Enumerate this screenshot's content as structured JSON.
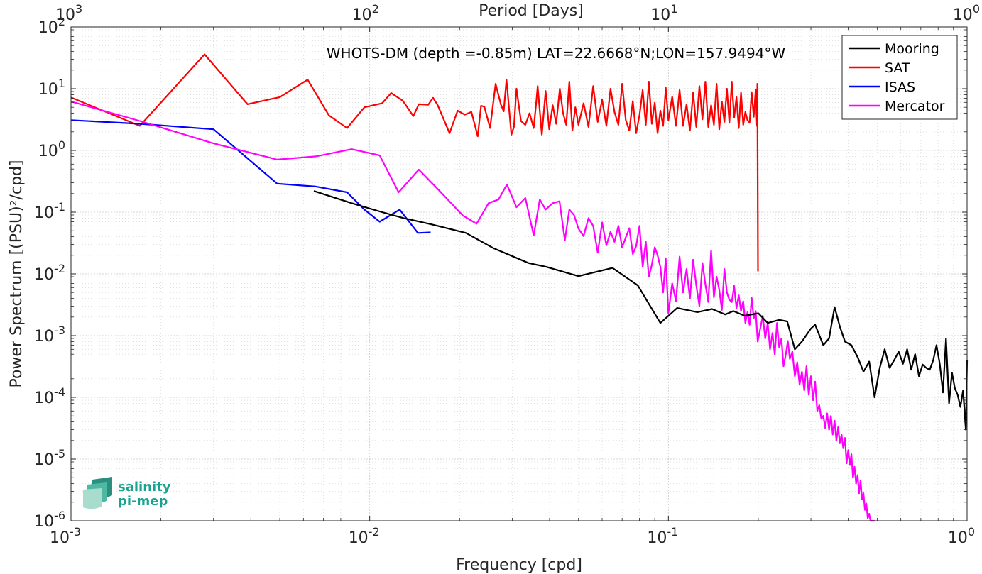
{
  "chart_data": {
    "type": "line",
    "title": "WHOTS-DM (depth =-0.85m) LAT=22.6668°N;LON=157.9494°W",
    "xlabel": "Frequency [cpd]",
    "ylabel": "Power Spectrum [(PSU)²/cpd]",
    "top_xlabel": "Period [Days]",
    "x_scale": "log",
    "y_scale": "log",
    "xlim": [
      0.001,
      1
    ],
    "ylim": [
      1e-06,
      100
    ],
    "x_ticks": [
      {
        "value": 0.001,
        "base": "10",
        "exp": "-3"
      },
      {
        "value": 0.01,
        "base": "10",
        "exp": "-2"
      },
      {
        "value": 0.1,
        "base": "10",
        "exp": "-1"
      },
      {
        "value": 1,
        "base": "10",
        "exp": "0"
      }
    ],
    "y_ticks": [
      {
        "value": 1e-06,
        "base": "10",
        "exp": "-6"
      },
      {
        "value": 1e-05,
        "base": "10",
        "exp": "-5"
      },
      {
        "value": 0.0001,
        "base": "10",
        "exp": "-4"
      },
      {
        "value": 0.001,
        "base": "10",
        "exp": "-3"
      },
      {
        "value": 0.01,
        "base": "10",
        "exp": "-2"
      },
      {
        "value": 0.1,
        "base": "10",
        "exp": "-1"
      },
      {
        "value": 1,
        "base": "10",
        "exp": "0"
      },
      {
        "value": 10,
        "base": "10",
        "exp": "1"
      },
      {
        "value": 100,
        "base": "10",
        "exp": "2"
      }
    ],
    "top_ticks": [
      {
        "value": 0.001,
        "base": "10",
        "exp": "3"
      },
      {
        "value": 0.01,
        "base": "10",
        "exp": "2"
      },
      {
        "value": 0.1,
        "base": "10",
        "exp": "1"
      },
      {
        "value": 1,
        "base": "10",
        "exp": "0"
      }
    ],
    "grid": true,
    "legend_position": "top-right",
    "series": [
      {
        "name": "Mooring",
        "color": "#000000",
        "x": [
          0.0065,
          0.0087,
          0.011,
          0.013,
          0.016,
          0.021,
          0.026,
          0.034,
          0.039,
          0.05,
          0.065,
          0.079,
          0.094,
          0.107,
          0.125,
          0.14,
          0.155,
          0.165,
          0.18,
          0.2,
          0.215,
          0.235,
          0.25,
          0.265,
          0.28,
          0.3,
          0.31,
          0.33,
          0.345,
          0.36,
          0.375,
          0.39,
          0.41,
          0.43,
          0.45,
          0.47,
          0.49,
          0.51,
          0.53,
          0.55,
          0.57,
          0.59,
          0.61,
          0.63,
          0.65,
          0.67,
          0.69,
          0.71,
          0.73,
          0.75,
          0.77,
          0.79,
          0.81,
          0.83,
          0.85,
          0.87,
          0.89,
          0.91,
          0.93,
          0.95,
          0.97,
          0.99,
          1.0
        ],
        "values": [
          0.22,
          0.14,
          0.1,
          0.08,
          0.064,
          0.046,
          0.026,
          0.015,
          0.013,
          0.0092,
          0.0125,
          0.0065,
          0.0016,
          0.0028,
          0.0024,
          0.0027,
          0.0022,
          0.0025,
          0.0021,
          0.0023,
          0.0016,
          0.0018,
          0.0017,
          0.0006,
          0.0008,
          0.0013,
          0.0015,
          0.0007,
          0.0009,
          0.0029,
          0.0014,
          0.0008,
          0.0007,
          0.00045,
          0.00026,
          0.00038,
          0.0001,
          0.0003,
          0.0006,
          0.0003,
          0.0004,
          0.00055,
          0.00035,
          0.0006,
          0.00028,
          0.0005,
          0.00022,
          0.00034,
          0.0003,
          0.00028,
          0.0004,
          0.0007,
          0.00035,
          0.00012,
          0.0009,
          8e-05,
          0.00025,
          0.00014,
          0.00011,
          7e-05,
          0.00013,
          3e-05,
          0.0004
        ]
      },
      {
        "name": "SAT",
        "color": "#ff0000",
        "x": [
          0.001,
          0.0017,
          0.0028,
          0.0039,
          0.005,
          0.0062,
          0.0073,
          0.0084,
          0.0096,
          0.011,
          0.0118,
          0.0129,
          0.014,
          0.0146,
          0.0157,
          0.0163,
          0.0169,
          0.0185,
          0.0197,
          0.0208,
          0.0219,
          0.023,
          0.0236,
          0.0242,
          0.0253,
          0.0264,
          0.0275,
          0.0281,
          0.0287,
          0.0298,
          0.0304,
          0.031,
          0.0321,
          0.0332,
          0.0343,
          0.0354,
          0.036,
          0.0365,
          0.0377,
          0.0388,
          0.0399,
          0.041,
          0.0421,
          0.0433,
          0.0444,
          0.0455,
          0.0466,
          0.0477,
          0.0488,
          0.05,
          0.052,
          0.054,
          0.056,
          0.058,
          0.06,
          0.062,
          0.064,
          0.066,
          0.068,
          0.07,
          0.072,
          0.074,
          0.076,
          0.078,
          0.08,
          0.082,
          0.084,
          0.086,
          0.088,
          0.09,
          0.092,
          0.094,
          0.096,
          0.098,
          0.1,
          0.103,
          0.106,
          0.109,
          0.112,
          0.115,
          0.118,
          0.121,
          0.124,
          0.127,
          0.13,
          0.133,
          0.136,
          0.139,
          0.142,
          0.145,
          0.148,
          0.151,
          0.154,
          0.157,
          0.16,
          0.163,
          0.166,
          0.169,
          0.172,
          0.175,
          0.178,
          0.181,
          0.184,
          0.187,
          0.19,
          0.193,
          0.196,
          0.198,
          0.1985,
          0.199,
          0.1995
        ],
        "values": [
          7.2,
          2.5,
          36,
          5.6,
          7.3,
          14,
          3.7,
          2.3,
          5,
          5.8,
          8.5,
          6.4,
          3.6,
          5.6,
          5.5,
          7.1,
          5.4,
          1.9,
          4.4,
          3.8,
          4.2,
          1.7,
          5.3,
          5.1,
          2.3,
          12,
          5.5,
          4.3,
          14,
          1.8,
          2.4,
          10,
          3,
          2.6,
          4,
          2.3,
          5.2,
          11,
          1.8,
          9.2,
          2.2,
          5.4,
          2.7,
          10,
          4,
          2.6,
          13,
          2.1,
          5,
          2.6,
          5.8,
          2.4,
          11,
          2.9,
          6.6,
          2.5,
          10,
          4.2,
          2.6,
          12,
          3.1,
          2.1,
          6.3,
          1.9,
          3.7,
          9.5,
          2.6,
          13,
          2.7,
          5.9,
          1.9,
          4.4,
          2.5,
          10.4,
          3.1,
          7.4,
          2.5,
          9.5,
          2.5,
          5.6,
          2.1,
          8.7,
          2.4,
          11,
          3.2,
          13,
          2.4,
          5.4,
          2.6,
          12,
          2.2,
          6.2,
          2.9,
          10,
          2.8,
          13,
          3.4,
          7.3,
          2.3,
          8.6,
          2.6,
          4.2,
          3.1,
          2.8,
          8.8,
          3.5,
          9.6,
          2.5,
          12,
          0.3,
          0.011
        ]
      },
      {
        "name": "ISAS",
        "color": "#0000ff",
        "x": [
          0.001,
          0.0017,
          0.003,
          0.0049,
          0.0066,
          0.0084,
          0.0096,
          0.0108,
          0.0126,
          0.0145,
          0.016
        ],
        "values": [
          3.1,
          2.7,
          2.2,
          0.29,
          0.26,
          0.21,
          0.11,
          0.07,
          0.11,
          0.046,
          0.047
        ]
      },
      {
        "name": "Mercator",
        "color": "#ff00ff",
        "x": [
          0.001,
          0.0017,
          0.003,
          0.0049,
          0.0066,
          0.0087,
          0.0108,
          0.0125,
          0.0146,
          0.017,
          0.0205,
          0.0228,
          0.025,
          0.027,
          0.0288,
          0.031,
          0.0332,
          0.0354,
          0.0371,
          0.0388,
          0.041,
          0.0432,
          0.045,
          0.0466,
          0.0483,
          0.05,
          0.052,
          0.054,
          0.056,
          0.058,
          0.06,
          0.062,
          0.064,
          0.066,
          0.068,
          0.07,
          0.072,
          0.074,
          0.076,
          0.078,
          0.08,
          0.082,
          0.084,
          0.086,
          0.088,
          0.09,
          0.092,
          0.094,
          0.096,
          0.098,
          0.1,
          0.103,
          0.106,
          0.109,
          0.112,
          0.115,
          0.118,
          0.121,
          0.124,
          0.127,
          0.13,
          0.133,
          0.136,
          0.139,
          0.142,
          0.145,
          0.148,
          0.151,
          0.154,
          0.157,
          0.16,
          0.163,
          0.166,
          0.169,
          0.172,
          0.175,
          0.178,
          0.181,
          0.184,
          0.187,
          0.19,
          0.193,
          0.196,
          0.199,
          0.203,
          0.207,
          0.211,
          0.215,
          0.219,
          0.223,
          0.227,
          0.231,
          0.235,
          0.239,
          0.243,
          0.247,
          0.251,
          0.255,
          0.26,
          0.265,
          0.27,
          0.275,
          0.28,
          0.285,
          0.29,
          0.295,
          0.3,
          0.305,
          0.31,
          0.315,
          0.32,
          0.325,
          0.33,
          0.335,
          0.34,
          0.345,
          0.35,
          0.355,
          0.36,
          0.365,
          0.37,
          0.375,
          0.38,
          0.385,
          0.39,
          0.395,
          0.4,
          0.405,
          0.41,
          0.415,
          0.42,
          0.425,
          0.43,
          0.435,
          0.44,
          0.445,
          0.45,
          0.455,
          0.46,
          0.465,
          0.47,
          0.475,
          0.48,
          0.485,
          0.49
        ],
        "values": [
          6.2,
          3.0,
          1.3,
          0.71,
          0.8,
          1.05,
          0.83,
          0.21,
          0.49,
          0.23,
          0.088,
          0.065,
          0.14,
          0.16,
          0.28,
          0.12,
          0.17,
          0.042,
          0.16,
          0.11,
          0.14,
          0.15,
          0.035,
          0.11,
          0.09,
          0.054,
          0.041,
          0.08,
          0.06,
          0.022,
          0.068,
          0.029,
          0.048,
          0.033,
          0.06,
          0.027,
          0.039,
          0.055,
          0.021,
          0.028,
          0.06,
          0.013,
          0.033,
          0.009,
          0.014,
          0.027,
          0.02,
          0.013,
          0.005,
          0.018,
          0.0023,
          0.007,
          0.0036,
          0.019,
          0.005,
          0.012,
          0.004,
          0.017,
          0.0065,
          0.003,
          0.015,
          0.0068,
          0.0035,
          0.024,
          0.0042,
          0.009,
          0.0055,
          0.0026,
          0.012,
          0.005,
          0.0038,
          0.0035,
          0.0064,
          0.0028,
          0.0045,
          0.0025,
          0.0036,
          0.0016,
          0.0024,
          0.0015,
          0.0041,
          0.0019,
          0.0025,
          0.0008,
          0.0013,
          0.0021,
          0.0009,
          0.0016,
          0.0006,
          0.0011,
          0.0005,
          0.0016,
          0.00064,
          0.0009,
          0.00032,
          0.00048,
          0.00082,
          0.00042,
          0.00055,
          0.00022,
          0.00037,
          0.00016,
          0.00026,
          0.00013,
          0.00032,
          0.00011,
          0.00022,
          9e-05,
          0.00018,
          6e-05,
          7.5e-05,
          4.5e-05,
          5e-05,
          3.2e-05,
          5.5e-05,
          3e-05,
          5e-05,
          2.5e-05,
          4.2e-05,
          2e-05,
          3.3e-05,
          1.8e-05,
          2.5e-05,
          1.5e-05,
          2.2e-05,
          8.5e-06,
          1.4e-05,
          8e-06,
          1.2e-05,
          5e-06,
          7.5e-06,
          4e-06,
          5.5e-06,
          2.8e-06,
          4.5e-06,
          2.2e-06,
          2.8e-06,
          1.5e-06,
          1.9e-06,
          1.1e-06,
          1.3e-06,
          1e-06,
          1e-06,
          1e-06,
          1e-06
        ]
      }
    ],
    "logo": {
      "line1": "salinity",
      "line2": "pi-mep"
    }
  }
}
